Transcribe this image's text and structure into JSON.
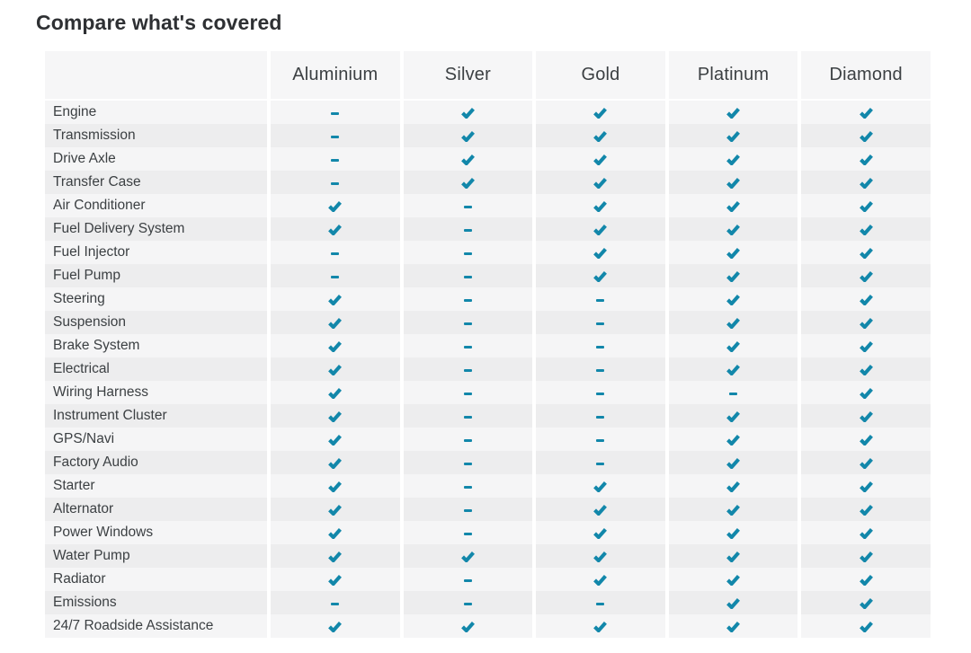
{
  "page": {
    "title": "Compare what's covered"
  },
  "colors": {
    "accent": "#1287aa",
    "row_odd": "#f5f5f6",
    "row_even": "#ededee",
    "header_bg": "#f6f6f7",
    "text": "#3c4043",
    "title_text": "#2e3033"
  },
  "table": {
    "columns": [
      "",
      "Aluminium",
      "Silver",
      "Gold",
      "Platinum",
      "Diamond"
    ],
    "legend": {
      "covered_icon": "check-icon",
      "not_covered_icon": "dash-icon"
    },
    "rows": [
      {
        "label": "Engine",
        "coverage": [
          "dash",
          "check",
          "check",
          "check",
          "check"
        ]
      },
      {
        "label": "Transmission",
        "coverage": [
          "dash",
          "check",
          "check",
          "check",
          "check"
        ]
      },
      {
        "label": "Drive Axle",
        "coverage": [
          "dash",
          "check",
          "check",
          "check",
          "check"
        ]
      },
      {
        "label": "Transfer Case",
        "coverage": [
          "dash",
          "check",
          "check",
          "check",
          "check"
        ]
      },
      {
        "label": "Air Conditioner",
        "coverage": [
          "check",
          "dash",
          "check",
          "check",
          "check"
        ]
      },
      {
        "label": "Fuel Delivery System",
        "coverage": [
          "check",
          "dash",
          "check",
          "check",
          "check"
        ]
      },
      {
        "label": "Fuel Injector",
        "coverage": [
          "dash",
          "dash",
          "check",
          "check",
          "check"
        ]
      },
      {
        "label": "Fuel Pump",
        "coverage": [
          "dash",
          "dash",
          "check",
          "check",
          "check"
        ]
      },
      {
        "label": "Steering",
        "coverage": [
          "check",
          "dash",
          "dash",
          "check",
          "check"
        ]
      },
      {
        "label": "Suspension",
        "coverage": [
          "check",
          "dash",
          "dash",
          "check",
          "check"
        ]
      },
      {
        "label": "Brake System",
        "coverage": [
          "check",
          "dash",
          "dash",
          "check",
          "check"
        ]
      },
      {
        "label": "Electrical",
        "coverage": [
          "check",
          "dash",
          "dash",
          "check",
          "check"
        ]
      },
      {
        "label": "Wiring Harness",
        "coverage": [
          "check",
          "dash",
          "dash",
          "dash",
          "check"
        ]
      },
      {
        "label": "Instrument Cluster",
        "coverage": [
          "check",
          "dash",
          "dash",
          "check",
          "check"
        ]
      },
      {
        "label": "GPS/Navi",
        "coverage": [
          "check",
          "dash",
          "dash",
          "check",
          "check"
        ]
      },
      {
        "label": "Factory Audio",
        "coverage": [
          "check",
          "dash",
          "dash",
          "check",
          "check"
        ]
      },
      {
        "label": "Starter",
        "coverage": [
          "check",
          "dash",
          "check",
          "check",
          "check"
        ]
      },
      {
        "label": "Alternator",
        "coverage": [
          "check",
          "dash",
          "check",
          "check",
          "check"
        ]
      },
      {
        "label": "Power Windows",
        "coverage": [
          "check",
          "dash",
          "check",
          "check",
          "check"
        ]
      },
      {
        "label": "Water Pump",
        "coverage": [
          "check",
          "check",
          "check",
          "check",
          "check"
        ]
      },
      {
        "label": "Radiator",
        "coverage": [
          "check",
          "dash",
          "check",
          "check",
          "check"
        ]
      },
      {
        "label": "Emissions",
        "coverage": [
          "dash",
          "dash",
          "dash",
          "check",
          "check"
        ]
      },
      {
        "label": "24/7 Roadside Assistance",
        "coverage": [
          "check",
          "check",
          "check",
          "check",
          "check"
        ]
      }
    ]
  }
}
